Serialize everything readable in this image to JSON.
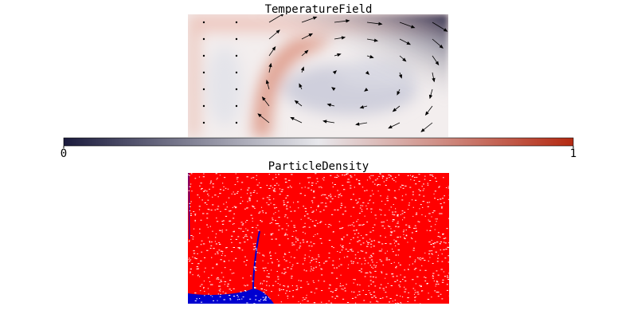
{
  "panels": [
    {
      "title": "TemperatureField"
    },
    {
      "title": "ParticleDensity"
    }
  ],
  "colorbar": {
    "range": [
      0,
      1
    ],
    "ticks": [
      0,
      1
    ]
  }
}
